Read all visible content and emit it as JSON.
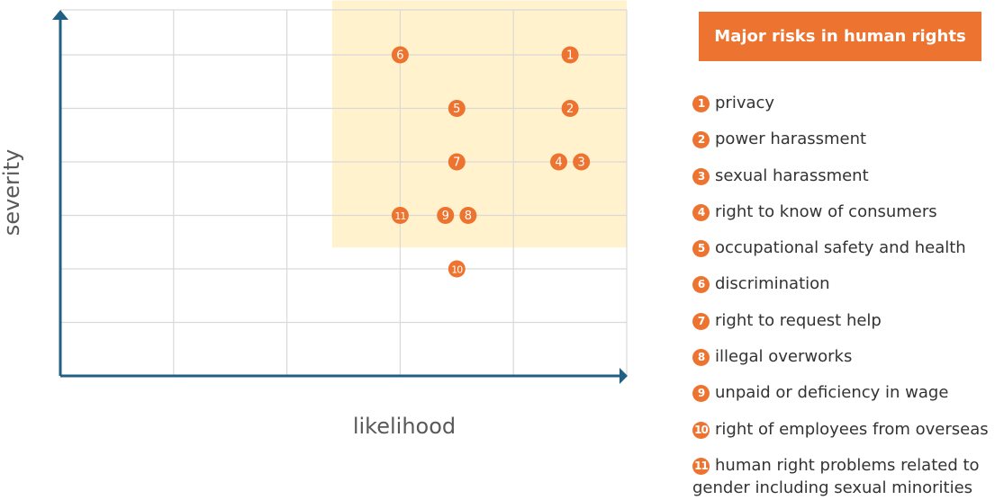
{
  "colors": {
    "axis": "#1F6084",
    "grid": "#D9D9D9",
    "highlight": "#FFF2CC",
    "marker": "#ED7430",
    "legend_title_bg": "#ED7430",
    "text": "#333333",
    "axis_label": "#595959"
  },
  "chart_data": {
    "type": "scatter",
    "xlabel": "likelihood",
    "ylabel": "severity",
    "xlim": [
      0,
      5
    ],
    "ylim": [
      0,
      7
    ],
    "grid": true,
    "highlight_region": {
      "x": [
        2.4,
        5
      ],
      "y": [
        2.4,
        7
      ]
    },
    "points": [
      {
        "label": "1",
        "x": 4.5,
        "y": 6
      },
      {
        "label": "2",
        "x": 4.5,
        "y": 5
      },
      {
        "label": "3",
        "x": 4.6,
        "y": 4
      },
      {
        "label": "4",
        "x": 4.4,
        "y": 4
      },
      {
        "label": "5",
        "x": 3.5,
        "y": 5
      },
      {
        "label": "6",
        "x": 3.0,
        "y": 6
      },
      {
        "label": "7",
        "x": 3.5,
        "y": 4
      },
      {
        "label": "8",
        "x": 3.6,
        "y": 3
      },
      {
        "label": "9",
        "x": 3.4,
        "y": 3
      },
      {
        "label": "10",
        "x": 3.5,
        "y": 2
      },
      {
        "label": "11",
        "x": 3.0,
        "y": 3
      }
    ]
  },
  "legend": {
    "title": "Major risks in human rights",
    "items": [
      {
        "num": "1",
        "label": "privacy"
      },
      {
        "num": "2",
        "label": "power harassment"
      },
      {
        "num": "3",
        "label": "sexual harassment"
      },
      {
        "num": "4",
        "label": "right to know of consumers"
      },
      {
        "num": "5",
        "label": "occupational safety and health"
      },
      {
        "num": "6",
        "label": "discrimination"
      },
      {
        "num": "7",
        "label": "right to request help"
      },
      {
        "num": "8",
        "label": "illegal overworks"
      },
      {
        "num": "9",
        "label": "unpaid or deficiency in wage"
      },
      {
        "num": "10",
        "label": "right of employees from overseas"
      },
      {
        "num": "11",
        "label": "human right problems related to gender including sexual minorities"
      }
    ]
  }
}
